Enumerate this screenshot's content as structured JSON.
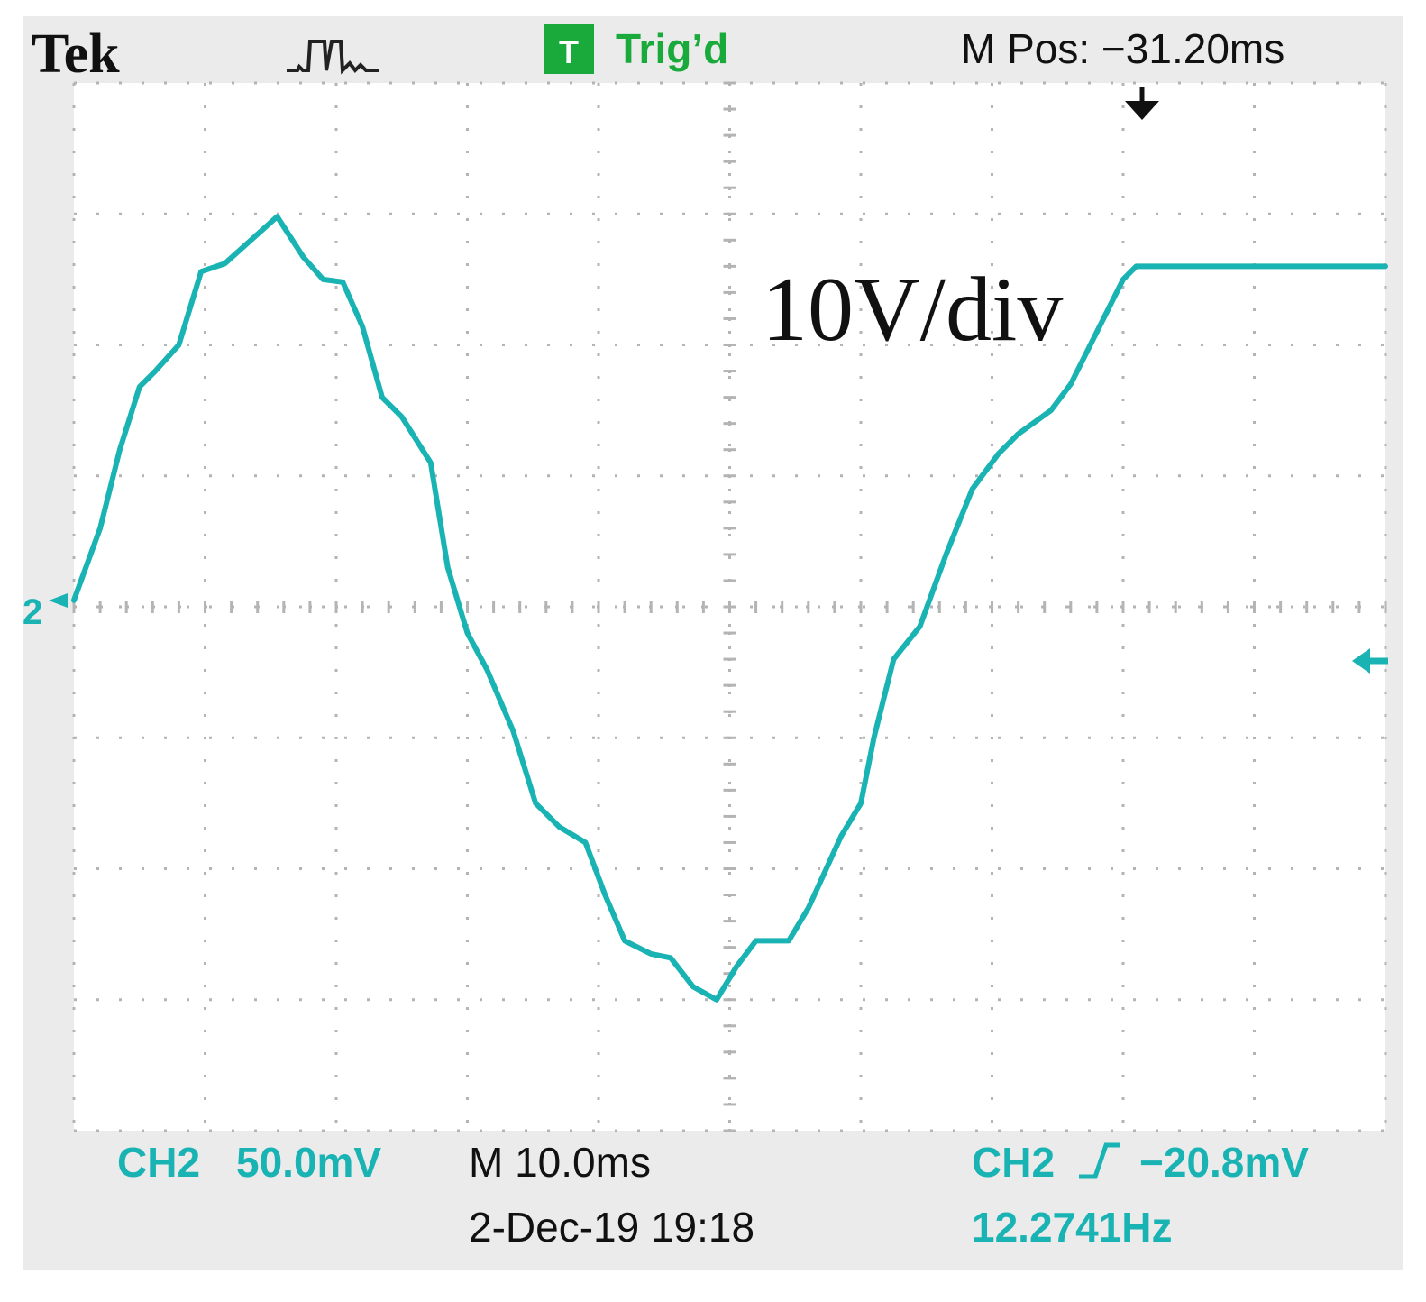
{
  "header": {
    "brand": "Tek",
    "trigger_badge": "T",
    "trigger_status": "Trig’d",
    "m_pos": "M Pos: −31.20ms",
    "acquire_icon": "acquire-pulse-icon",
    "trigger_pos_icon": "trigger-position-arrow-icon"
  },
  "annotation": "10V/div",
  "channel_marker": "2",
  "footer": {
    "ch_label": "CH2",
    "ch_scale": "50.0mV",
    "timebase": "M 10.0ms",
    "datetime": "2-Dec-19 19:18",
    "trigger_source": "CH2",
    "trigger_level": "−20.8mV",
    "frequency": "12.2741Hz",
    "trigger_slope_icon": "rising-edge-icon",
    "trigger_level_icon": "trigger-level-arrow-icon"
  },
  "colors": {
    "trace": "#1ab3b3",
    "badge": "#1aaa3c",
    "trig_text": "#1aaa3c",
    "screen_bg": "#ffffff",
    "frame_bg": "#ebebeb",
    "grid": "#b4b4b4",
    "text": "#111111"
  },
  "chart_data": {
    "type": "line",
    "grid": true,
    "divisions": {
      "x": 10,
      "y": 8
    },
    "xlim": [
      0,
      10
    ],
    "ylim": [
      -4,
      4
    ],
    "series": [
      {
        "x": [
          0,
          0.2,
          0.35,
          0.5,
          0.62,
          0.8,
          0.97,
          1.15,
          1.35,
          1.55,
          1.75,
          1.9,
          2.05,
          2.2,
          2.35,
          2.5,
          2.72,
          2.85,
          3.0,
          3.15,
          3.35,
          3.52,
          3.7,
          3.9,
          4.05,
          4.2,
          4.4,
          4.55,
          4.72,
          4.9,
          5.05,
          5.2,
          5.45,
          5.6,
          5.85,
          6.0,
          6.1,
          6.25,
          6.45,
          6.65,
          6.85,
          7.05,
          7.2,
          7.45,
          7.6,
          7.8,
          8.0,
          8.1,
          8.25,
          8.4,
          8.6,
          8.85,
          9.0,
          9.2,
          9.35,
          9.55,
          9.7,
          10.0
        ],
        "y": [
          0.05,
          0.6,
          1.2,
          1.68,
          1.8,
          2.0,
          2.56,
          2.62,
          2.8,
          2.98,
          2.67,
          2.5,
          2.48,
          2.14,
          1.6,
          1.45,
          1.1,
          0.3,
          -0.2,
          -0.48,
          -0.95,
          -1.5,
          -1.68,
          -1.8,
          -2.2,
          -2.55,
          -2.65,
          -2.68,
          -2.9,
          -3.0,
          -2.75,
          -2.55,
          -2.55,
          -2.3,
          -1.75,
          -1.5,
          -1.0,
          -0.4,
          -0.15,
          0.4,
          0.9,
          1.17,
          1.32,
          1.5,
          1.7,
          2.1,
          2.5,
          2.6,
          2.6,
          2.6,
          2.6,
          2.6,
          2.6,
          2.6,
          2.6,
          2.6,
          2.6,
          2.6
        ]
      }
    ]
  }
}
